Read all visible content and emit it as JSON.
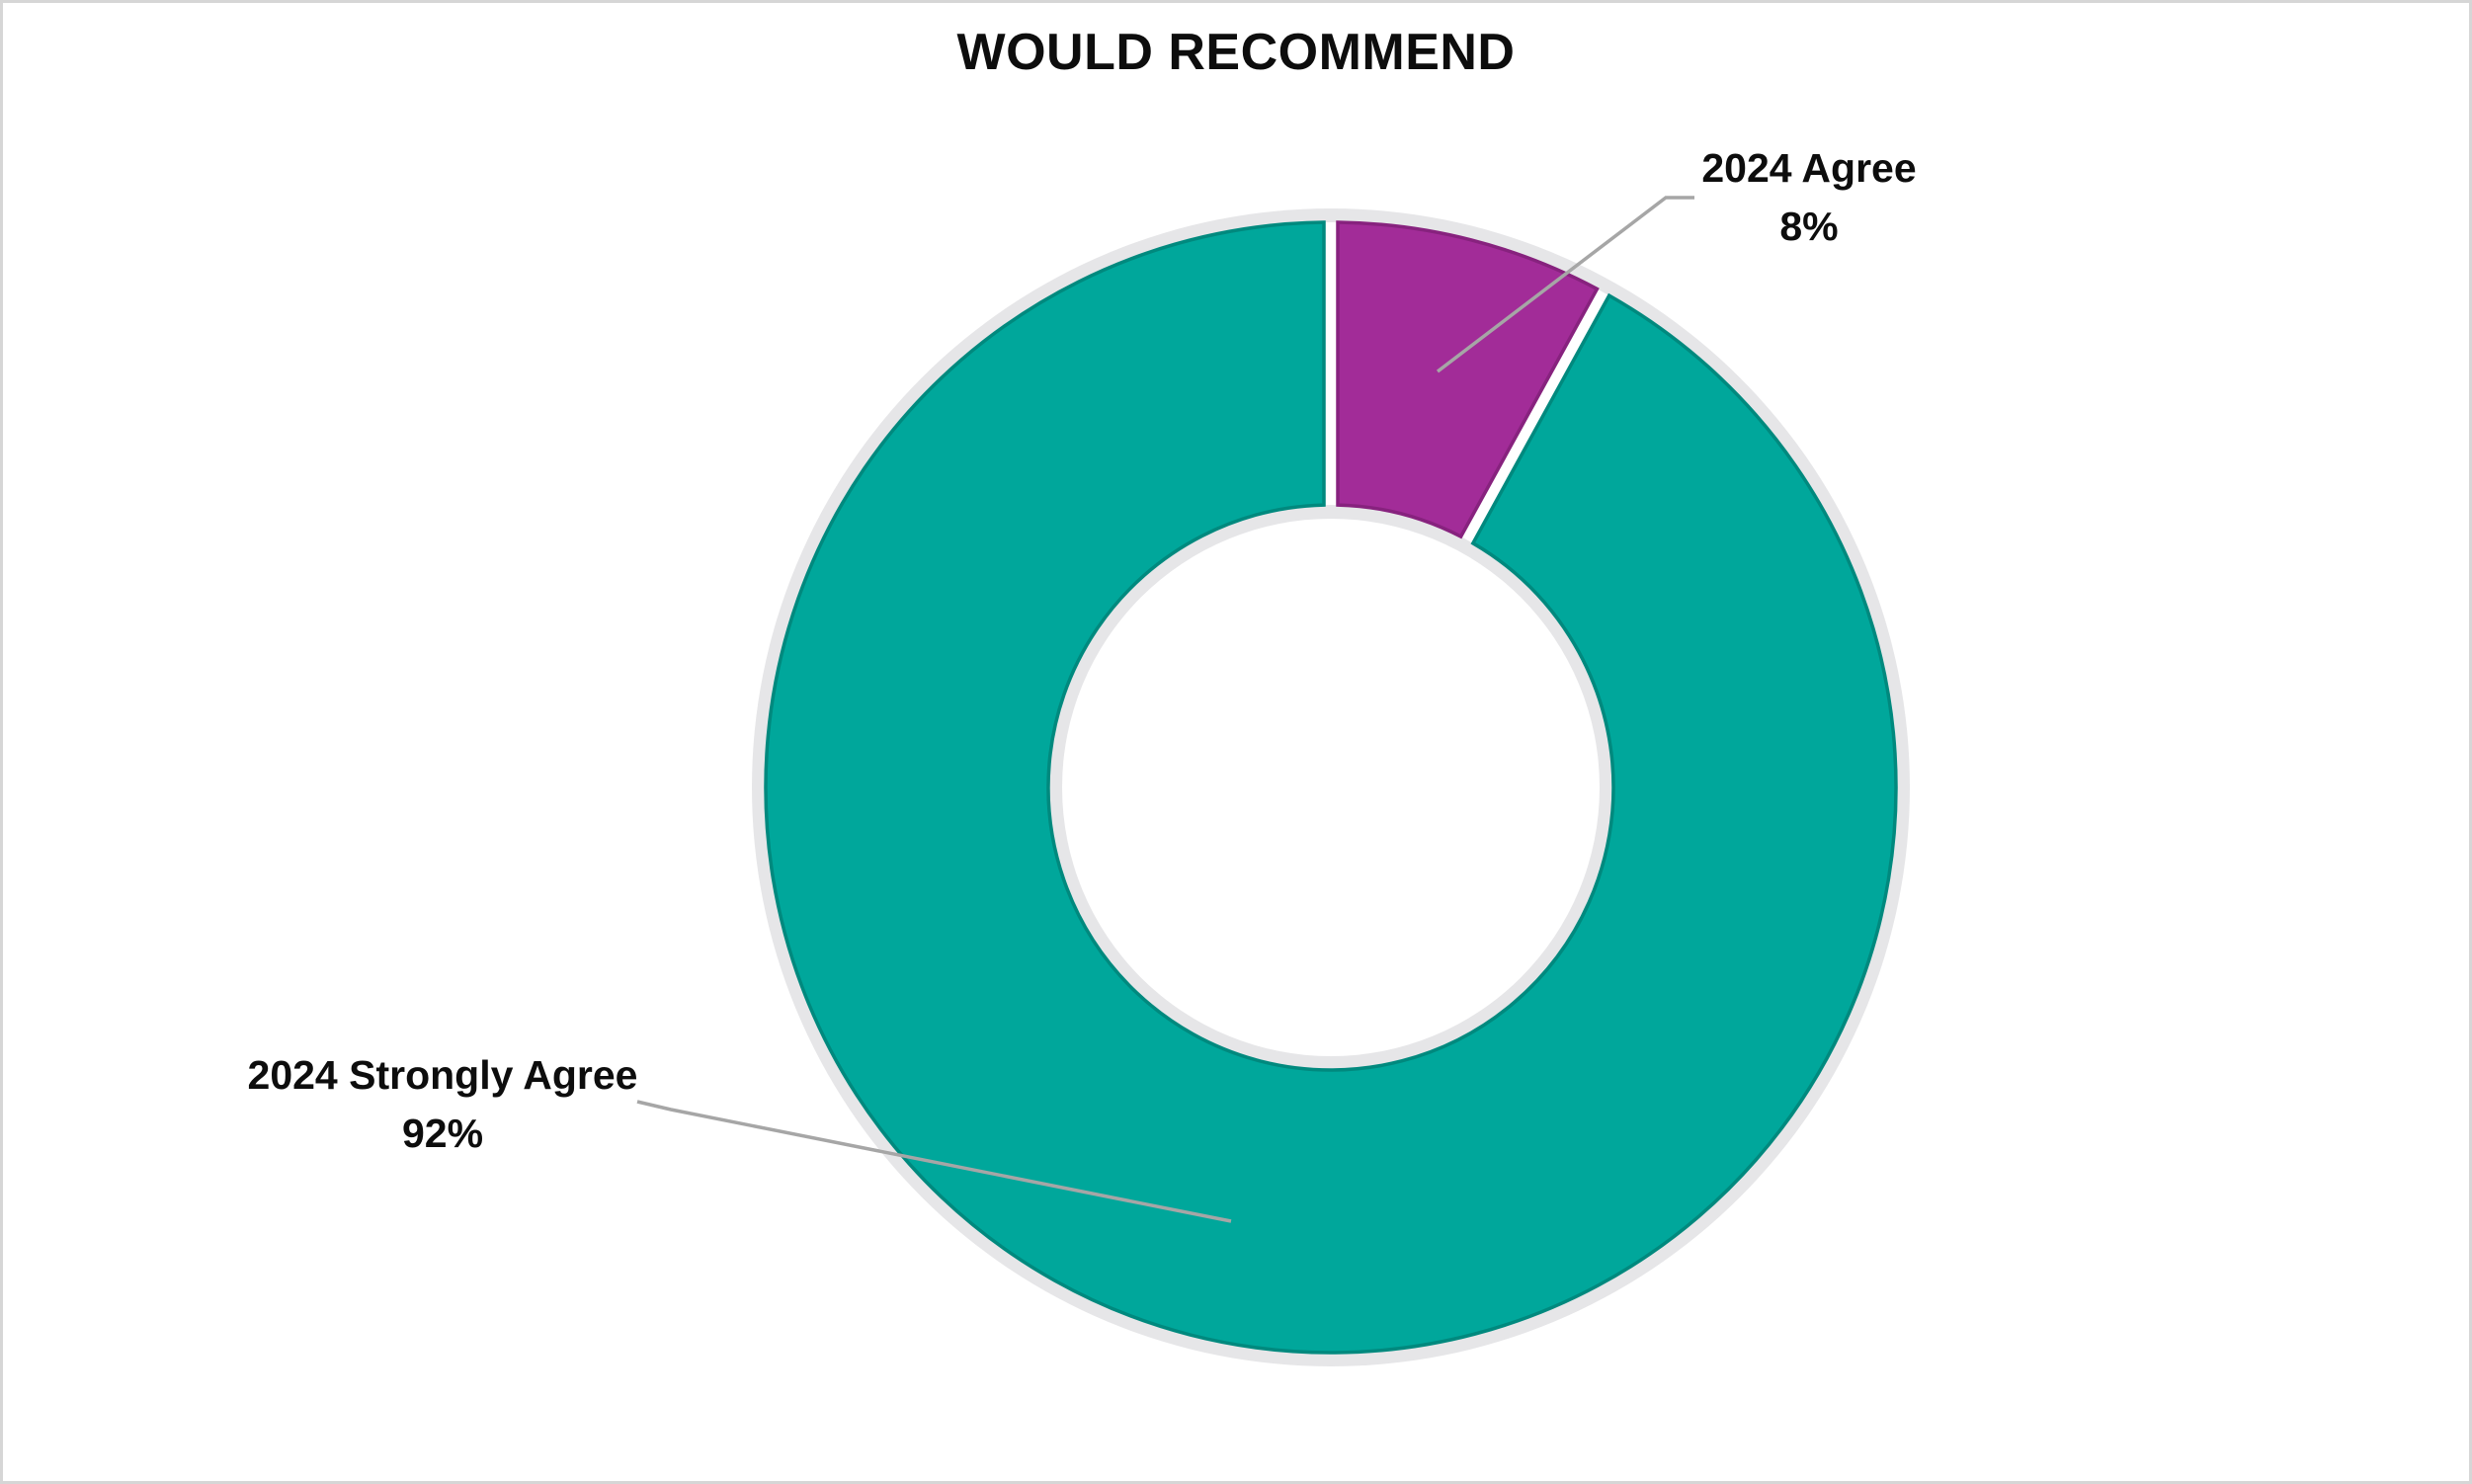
{
  "title": "WOULD RECOMMEND",
  "chart_data": {
    "type": "pie",
    "subtype": "doughnut",
    "title": "WOULD RECOMMEND",
    "series_name": "2024",
    "categories": [
      "Agree",
      "Strongly Agree"
    ],
    "values": [
      8,
      92
    ],
    "unit": "%",
    "start_angle_deg": 0,
    "direction": "clockwise",
    "hole_ratio": 0.5,
    "legend_position": "none",
    "data_labels": [
      {
        "line1": "2024 Agree",
        "line2": "8%"
      },
      {
        "line1": "2024 Strongly Agree",
        "line2": "92%"
      }
    ],
    "colors": {
      "agree_fill": "#a22c98",
      "agree_edge": "#87227e",
      "strongly_fill": "#00a79b",
      "strongly_edge": "#00897e",
      "rim": "#e6e6e8",
      "separator": "#ffffff",
      "leader_line": "#a6a6a6",
      "title_text": "#0d0d0d",
      "canvas_border": "#d6d6d6",
      "background": "#ffffff"
    }
  },
  "callouts": {
    "agree": {
      "line1": "2024 Agree",
      "line2": "8%"
    },
    "strongly": {
      "line1": "2024 Strongly Agree",
      "line2": "92%"
    }
  }
}
